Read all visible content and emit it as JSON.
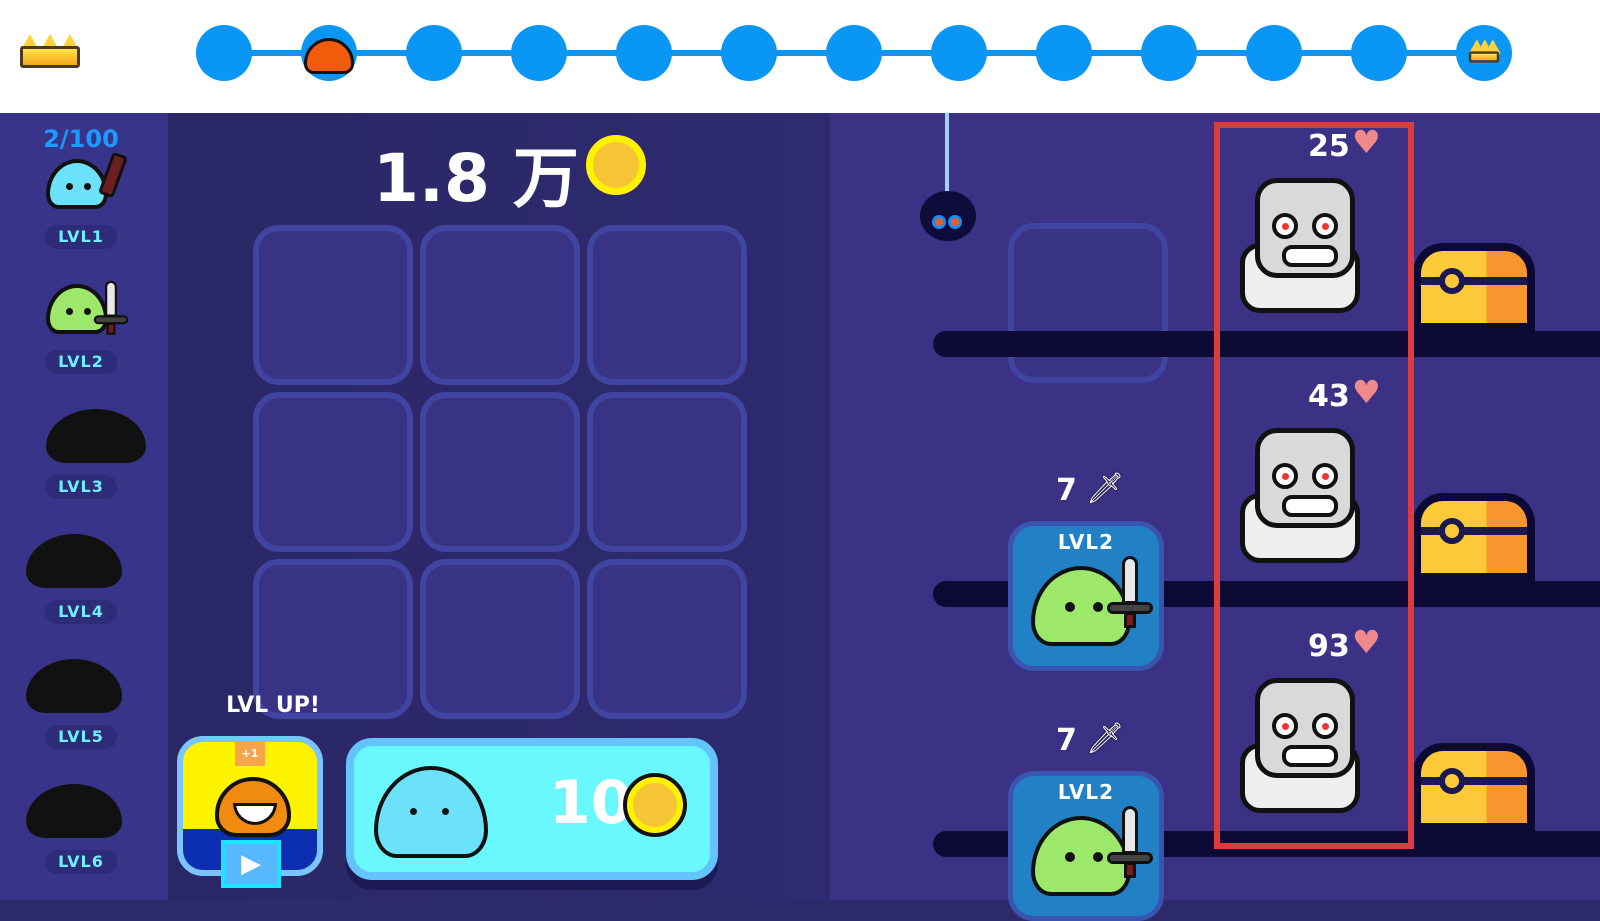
{
  "progress": {
    "total_stages": 13,
    "current_stage": 2,
    "start_icon": "crown-icon",
    "end_icon": "crown-icon",
    "current_icon": "orange-slime-icon"
  },
  "sidebar": {
    "count": "2/100",
    "items": [
      {
        "label": "LVL1",
        "unlocked": true,
        "icon": "blue-slime-with-club"
      },
      {
        "label": "LVL2",
        "unlocked": true,
        "icon": "green-slime-with-sword"
      },
      {
        "label": "LVL3",
        "unlocked": false,
        "icon": "locked-silhouette"
      },
      {
        "label": "LVL4",
        "unlocked": false,
        "icon": "locked-silhouette"
      },
      {
        "label": "LVL5",
        "unlocked": false,
        "icon": "locked-silhouette"
      },
      {
        "label": "LVL6",
        "unlocked": false,
        "icon": "locked-silhouette"
      }
    ]
  },
  "currency": {
    "amount": "1.8 万",
    "icon": "coin-icon"
  },
  "lvlup": {
    "label": "LVL UP!",
    "badge": "+1",
    "icon": "video-play-icon"
  },
  "buy": {
    "price": "10",
    "icon": "coin-icon"
  },
  "lanes": [
    {
      "enemy_hp": "25",
      "ally": null
    },
    {
      "enemy_hp": "43",
      "ally": {
        "level": "LVL2",
        "attack": "7"
      }
    },
    {
      "enemy_hp": "93",
      "ally": {
        "level": "LVL2",
        "attack": "7"
      }
    }
  ],
  "colors": {
    "accent": "#0a96f5",
    "highlight": "#e0393e",
    "coin": "#fff200"
  }
}
